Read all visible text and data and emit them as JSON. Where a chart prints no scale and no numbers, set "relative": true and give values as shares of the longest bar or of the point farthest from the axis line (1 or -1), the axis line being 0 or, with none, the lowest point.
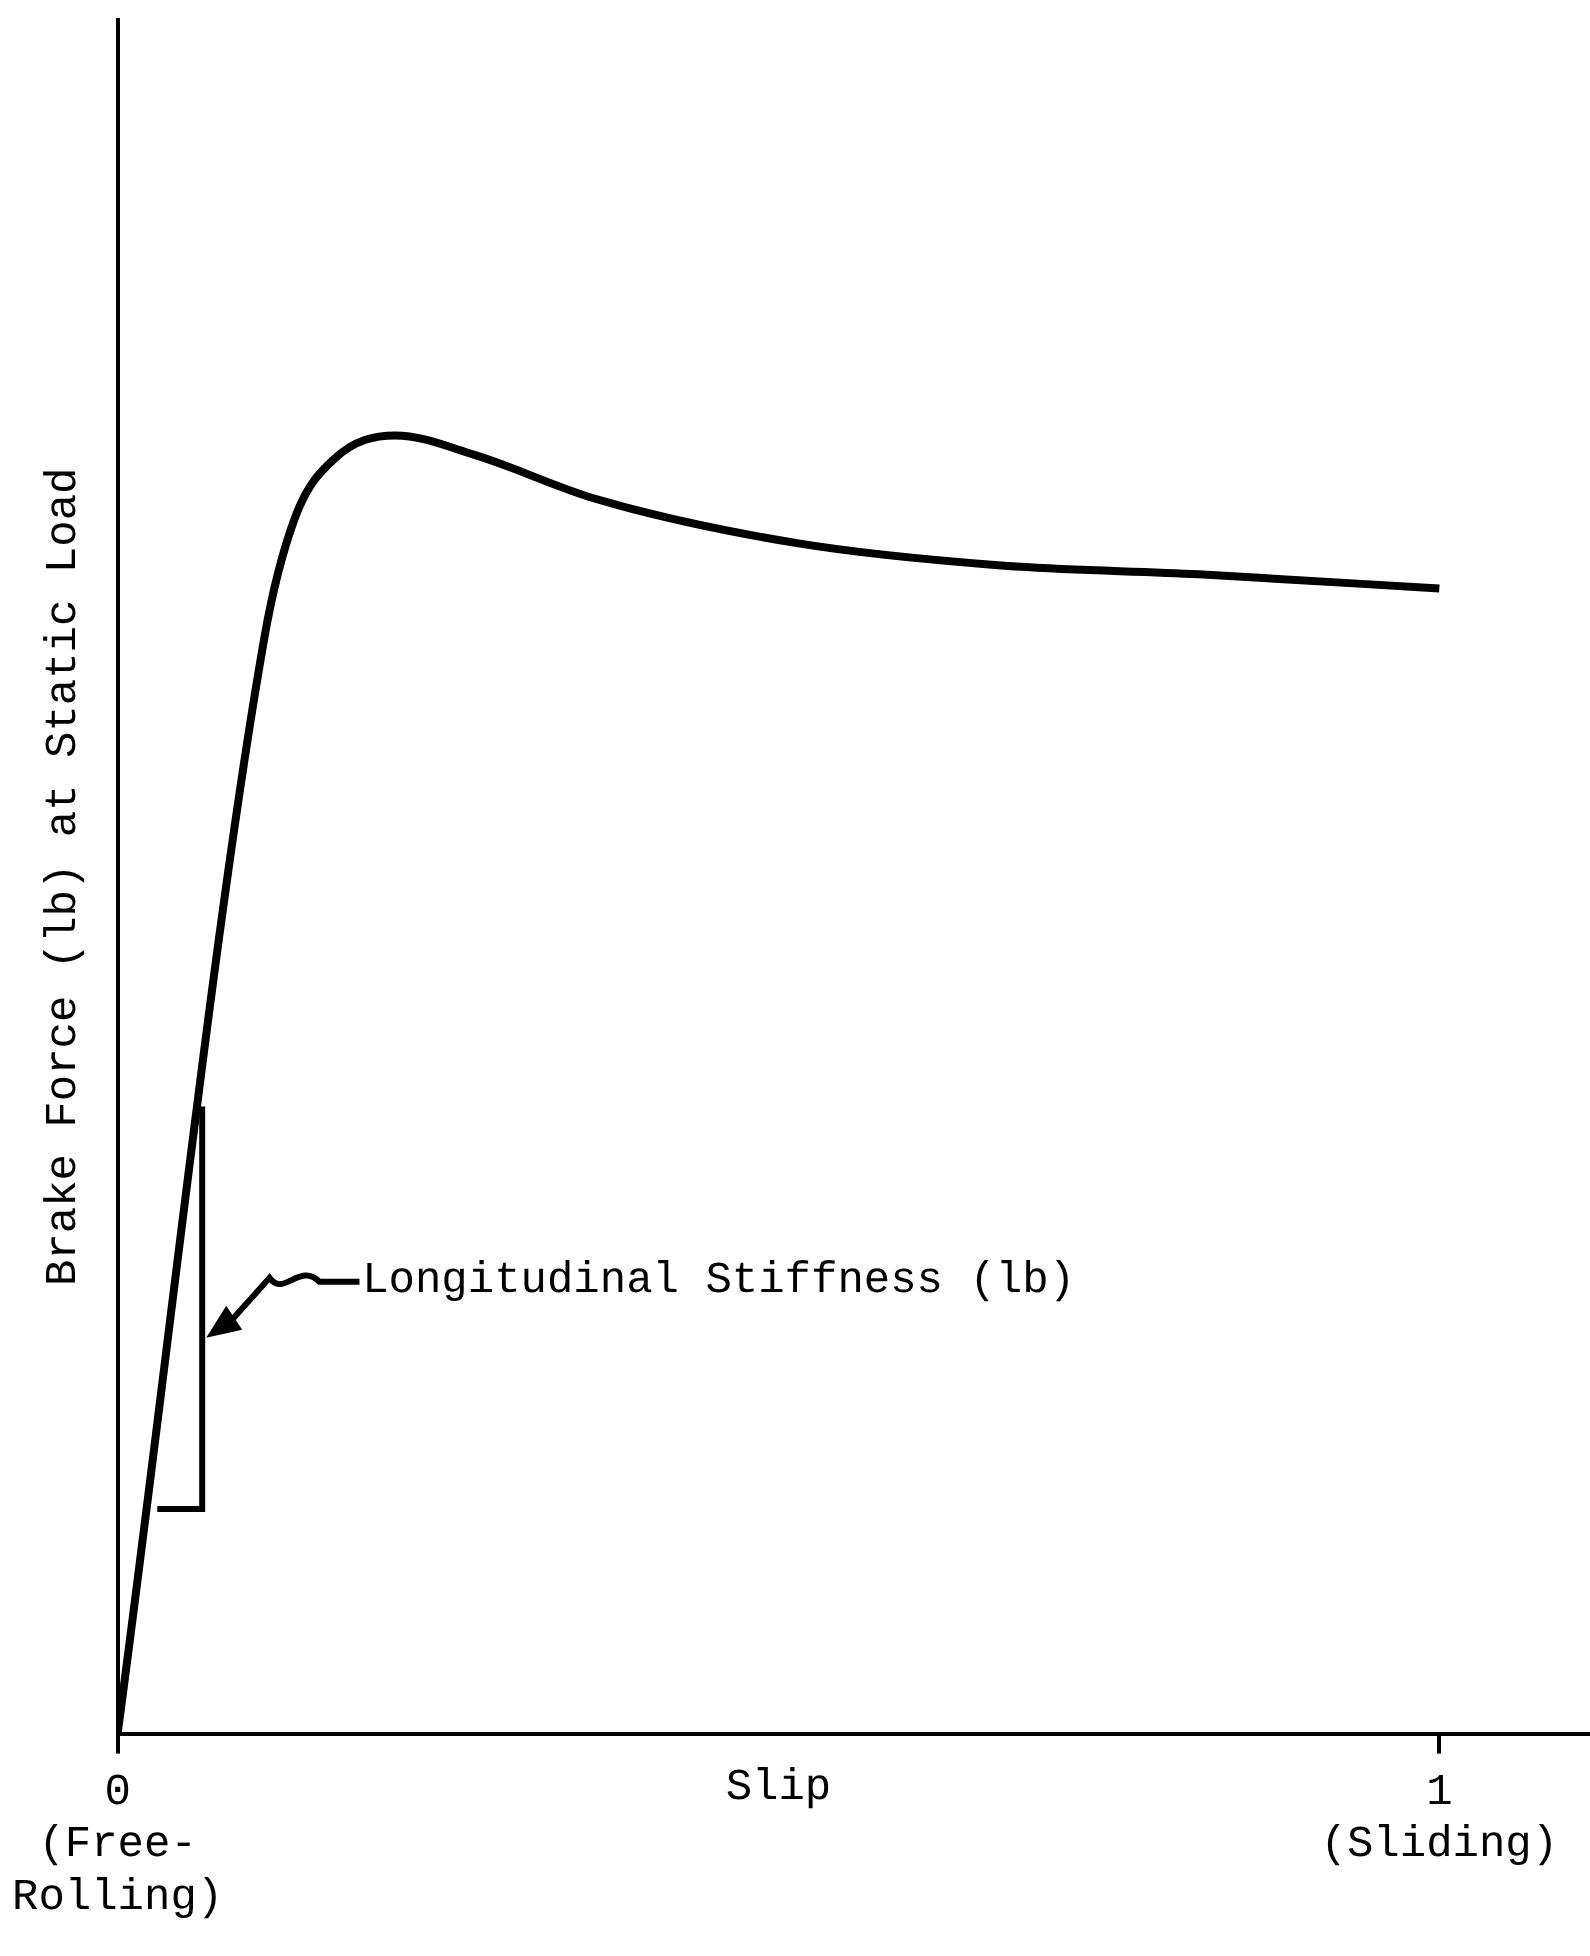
{
  "chart_data": {
    "type": "line",
    "xlabel": "Slip",
    "ylabel": "Brake Force (lb) at Static Load",
    "relative": true,
    "x": [
      0,
      0.111,
      0.134,
      0.164,
      0.21,
      0.27,
      0.362,
      0.514,
      0.666,
      0.818,
      1
    ],
    "values": [
      0,
      0.844,
      0.936,
      0.982,
      1,
      0.985,
      0.951,
      0.917,
      0.9,
      0.893,
      0.882
    ],
    "color": "#000000",
    "marker": "none",
    "grid": false,
    "xlim": [
      0,
      1.114
    ],
    "xticks": [
      {
        "value": 0,
        "label": "0\n(Free-\nRolling)"
      },
      {
        "value": 1,
        "label": "1\n(Sliding)"
      }
    ],
    "annotations": [
      "Longitudinal Stiffness (lb)"
    ]
  }
}
